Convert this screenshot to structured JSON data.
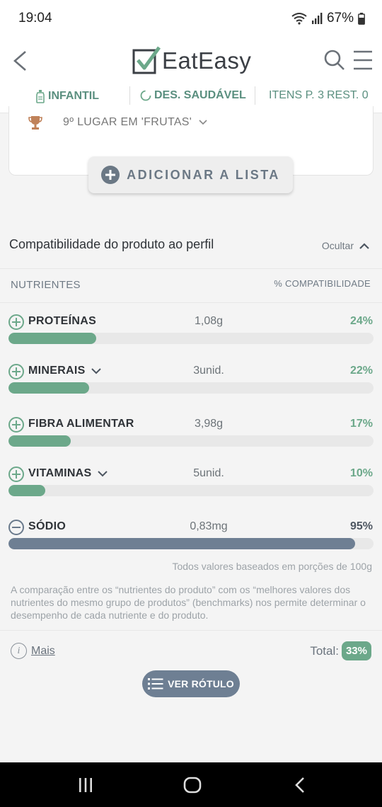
{
  "status_bar": {
    "time": "19:04",
    "battery": "67%"
  },
  "header": {
    "brand": "EatEasy",
    "profile_bar": {
      "infantil": "INFANTIL",
      "desenvolvimento": "DES. SAUDÁVEL",
      "itens": "ITENS P. 3",
      "rest": "REST. 0"
    }
  },
  "card": {
    "ranking": "9º LUGAR EM 'FRUTAS'",
    "add_button": "ADICIONAR A LISTA"
  },
  "compatibility": {
    "title": "Compatibilidade do produto ao perfil",
    "toggle": "Ocultar",
    "col_left": "NUTRIENTES",
    "col_right": "% COMPATIBILIDADE",
    "nutrients": [
      {
        "name": "PROTEÍNAS",
        "amount": "1,08g",
        "pct": "24%",
        "fraction": 0.24
      },
      {
        "name": "MINERAIS",
        "amount": "3unid.",
        "pct": "22%",
        "fraction": 0.22
      },
      {
        "name": "FIBRA ALIMENTAR",
        "amount": "3,98g",
        "pct": "17%",
        "fraction": 0.17
      },
      {
        "name": "VITAMINAS",
        "amount": "5unid.",
        "pct": "10%",
        "fraction": 0.1
      },
      {
        "name": "SÓDIO",
        "amount": "0,83mg",
        "pct": "95%",
        "fraction": 0.95
      }
    ],
    "portion_note": "Todos valores baseados em porções de 100g",
    "explanation": "A comparação entre os “nutrientes do produto” com os “melhores valores dos nutrientes do mesmo grupo de produtos” (benchmarks) nos permite determinar o desempenho de cada nutriente e do produto.",
    "more": "Mais",
    "total_label": "Total:",
    "total_value": "33%",
    "label_button": "VER RÓTULO"
  },
  "colors": {
    "accent": "#6ca88a",
    "negative": "#6e7f93",
    "text": "#2f3338"
  }
}
